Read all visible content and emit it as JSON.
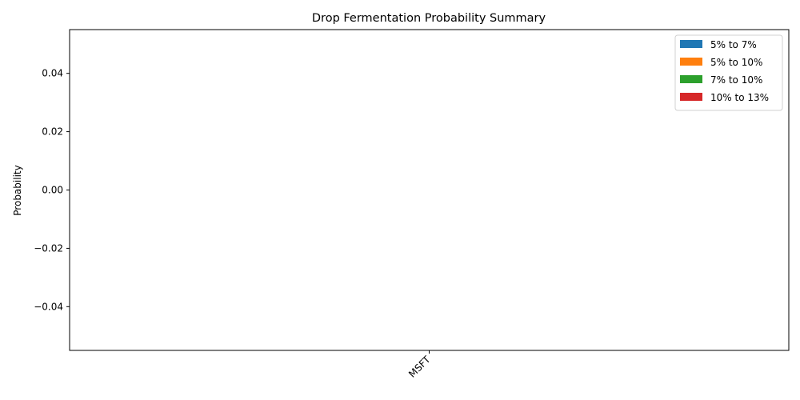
{
  "chart_data": {
    "type": "bar",
    "title": "Drop Fermentation Probability Summary",
    "xlabel": "",
    "ylabel": "Probability",
    "categories": [
      "MSFT"
    ],
    "series": [
      {
        "name": "5% to 7%",
        "values": [
          0
        ],
        "color": "#1f77b4"
      },
      {
        "name": "5% to 10%",
        "values": [
          0
        ],
        "color": "#ff7f0e"
      },
      {
        "name": "7% to 10%",
        "values": [
          0
        ],
        "color": "#2ca02c"
      },
      {
        "name": "10% to 13%",
        "values": [
          0
        ],
        "color": "#d62728"
      }
    ],
    "ylim": [
      -0.055,
      0.055
    ],
    "yticks": [
      -0.04,
      -0.02,
      0.0,
      0.02,
      0.04
    ],
    "ytick_labels": [
      "−0.04",
      "−0.02",
      "0.00",
      "0.02",
      "0.04"
    ],
    "legend_position": "top-right",
    "grid": false
  }
}
